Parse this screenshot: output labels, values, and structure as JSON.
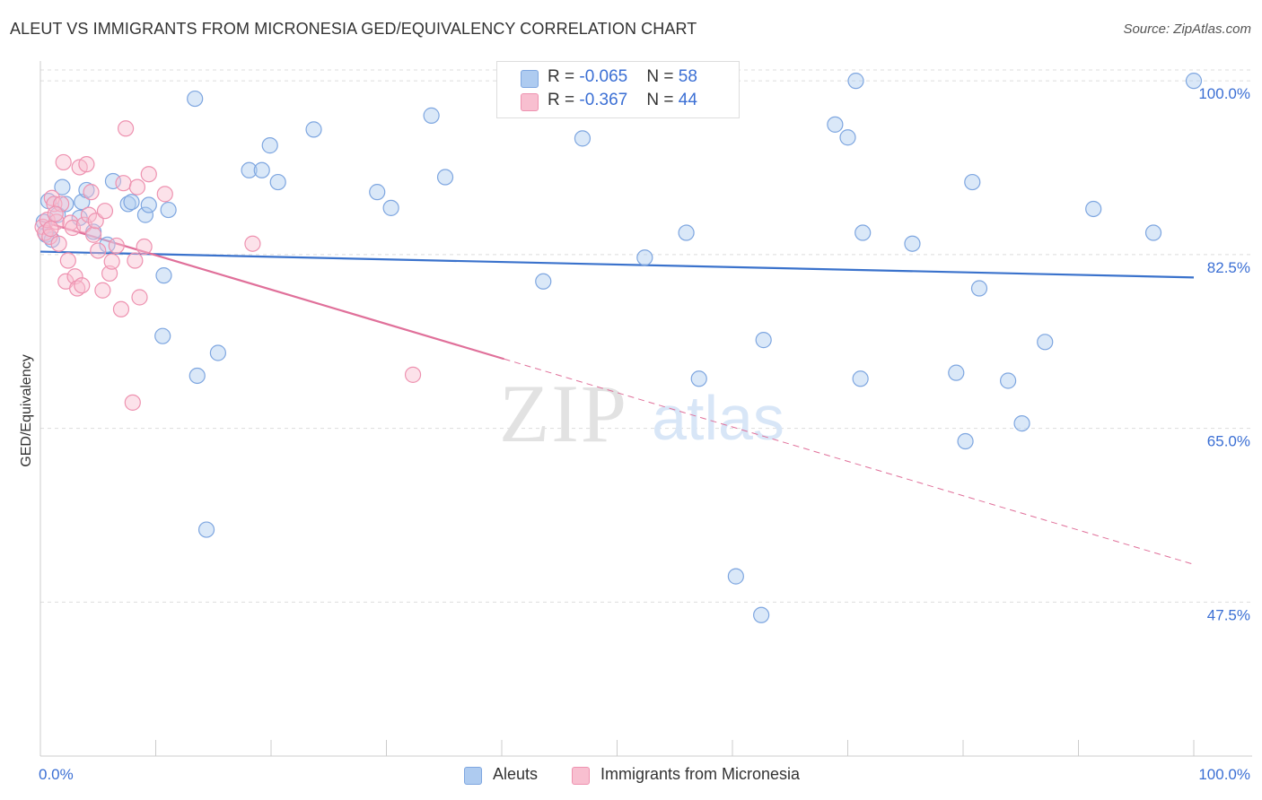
{
  "title": "ALEUT VS IMMIGRANTS FROM MICRONESIA GED/EQUIVALENCY CORRELATION CHART",
  "source": "Source: ZipAtlas.com",
  "watermark": {
    "zip": "ZIP",
    "atlas": "atlas"
  },
  "colors": {
    "aleuts_fill": "#aecbf0",
    "aleuts_stroke": "#7ea6e0",
    "aleuts_line": "#3a72cc",
    "micronesia_fill": "#f8bfd0",
    "micronesia_stroke": "#ee92b0",
    "micronesia_line": "#e0709a",
    "tick_label": "#3b6fd4",
    "grid": "#dddddd"
  },
  "legend_top": {
    "rows": [
      {
        "r_label": "R = ",
        "r_value": "-0.065",
        "n_label": "N = ",
        "n_value": "58"
      },
      {
        "r_label": "R = ",
        "r_value": "-0.367",
        "n_label": "N = ",
        "n_value": "44"
      }
    ]
  },
  "chart_data": {
    "type": "scatter",
    "title": "ALEUT VS IMMIGRANTS FROM MICRONESIA GED/EQUIVALENCY CORRELATION CHART",
    "xlabel": "",
    "ylabel": "GED/Equivalency",
    "xlim": [
      0,
      100
    ],
    "ylim": [
      32,
      102
    ],
    "x_tick_labels": [
      "0.0%",
      "100.0%"
    ],
    "y_ticks": [
      47.5,
      65.0,
      82.5,
      100.0
    ],
    "y_tick_labels": [
      "47.5%",
      "65.0%",
      "82.5%",
      "100.0%"
    ],
    "grid": "horizontal dashed",
    "legend_position": "bottom",
    "series": [
      {
        "name": "Aleuts",
        "r": -0.065,
        "n": 58,
        "trend": {
          "x": [
            0,
            100
          ],
          "y": [
            82.8,
            80.2
          ],
          "dashed_from": null
        },
        "points": [
          [
            0.5,
            84.5
          ],
          [
            0.7,
            87.9
          ],
          [
            1.0,
            84.0
          ],
          [
            1.5,
            86.5
          ],
          [
            1.9,
            89.3
          ],
          [
            2.2,
            87.6
          ],
          [
            3.4,
            86.2
          ],
          [
            3.6,
            87.8
          ],
          [
            4.0,
            89.0
          ],
          [
            4.6,
            84.8
          ],
          [
            5.8,
            83.5
          ],
          [
            6.3,
            89.9
          ],
          [
            7.6,
            87.6
          ],
          [
            7.9,
            87.8
          ],
          [
            9.1,
            86.5
          ],
          [
            9.4,
            87.5
          ],
          [
            10.6,
            74.3
          ],
          [
            10.7,
            80.4
          ],
          [
            11.1,
            87.0
          ],
          [
            13.4,
            98.2
          ],
          [
            13.6,
            70.3
          ],
          [
            14.4,
            54.8
          ],
          [
            15.4,
            72.6
          ],
          [
            18.1,
            91.0
          ],
          [
            19.2,
            91.0
          ],
          [
            19.9,
            93.5
          ],
          [
            20.6,
            89.8
          ],
          [
            23.7,
            95.1
          ],
          [
            29.2,
            88.8
          ],
          [
            30.4,
            87.2
          ],
          [
            33.9,
            96.5
          ],
          [
            35.1,
            90.3
          ],
          [
            43.6,
            79.8
          ],
          [
            47.0,
            94.2
          ],
          [
            52.4,
            82.2
          ],
          [
            55.1,
            100.0
          ],
          [
            56.0,
            84.7
          ],
          [
            57.1,
            70.0
          ],
          [
            60.3,
            50.1
          ],
          [
            62.5,
            46.2
          ],
          [
            62.7,
            73.9
          ],
          [
            68.9,
            95.6
          ],
          [
            70.0,
            94.3
          ],
          [
            70.7,
            100.0
          ],
          [
            71.1,
            70.0
          ],
          [
            71.3,
            84.7
          ],
          [
            75.6,
            83.6
          ],
          [
            79.4,
            70.6
          ],
          [
            80.2,
            63.7
          ],
          [
            80.8,
            89.8
          ],
          [
            81.4,
            79.1
          ],
          [
            83.9,
            69.8
          ],
          [
            85.1,
            65.5
          ],
          [
            87.1,
            73.7
          ],
          [
            91.3,
            87.1
          ],
          [
            96.5,
            84.7
          ],
          [
            100.0,
            100.0
          ],
          [
            0.3,
            85.8
          ]
        ]
      },
      {
        "name": "Immigrants from Micronesia",
        "r": -0.367,
        "n": 44,
        "trend": {
          "x": [
            0,
            100
          ],
          "y": [
            85.9,
            51.3
          ],
          "dashed_from": 40.2
        },
        "points": [
          [
            0.2,
            85.3
          ],
          [
            0.4,
            84.7
          ],
          [
            0.6,
            86.0
          ],
          [
            0.8,
            84.3
          ],
          [
            1.0,
            88.2
          ],
          [
            1.2,
            87.6
          ],
          [
            1.4,
            85.8
          ],
          [
            1.6,
            83.6
          ],
          [
            1.8,
            87.6
          ],
          [
            2.0,
            91.8
          ],
          [
            2.2,
            79.8
          ],
          [
            2.4,
            81.9
          ],
          [
            2.6,
            85.7
          ],
          [
            2.8,
            85.2
          ],
          [
            3.0,
            80.3
          ],
          [
            3.2,
            79.1
          ],
          [
            3.4,
            91.3
          ],
          [
            3.6,
            79.4
          ],
          [
            3.8,
            85.5
          ],
          [
            4.0,
            91.6
          ],
          [
            4.2,
            86.5
          ],
          [
            4.4,
            88.8
          ],
          [
            4.6,
            84.5
          ],
          [
            4.8,
            85.9
          ],
          [
            5.0,
            82.9
          ],
          [
            5.4,
            78.9
          ],
          [
            5.6,
            86.9
          ],
          [
            6.0,
            80.6
          ],
          [
            6.2,
            81.8
          ],
          [
            6.6,
            83.4
          ],
          [
            7.0,
            77.0
          ],
          [
            7.2,
            89.7
          ],
          [
            7.4,
            95.2
          ],
          [
            8.0,
            67.6
          ],
          [
            8.2,
            81.9
          ],
          [
            8.4,
            89.3
          ],
          [
            8.6,
            78.2
          ],
          [
            9.0,
            83.3
          ],
          [
            9.4,
            90.6
          ],
          [
            10.8,
            88.6
          ],
          [
            18.4,
            83.6
          ],
          [
            32.3,
            70.4
          ],
          [
            1.3,
            86.6
          ],
          [
            0.9,
            85.1
          ]
        ]
      }
    ]
  }
}
